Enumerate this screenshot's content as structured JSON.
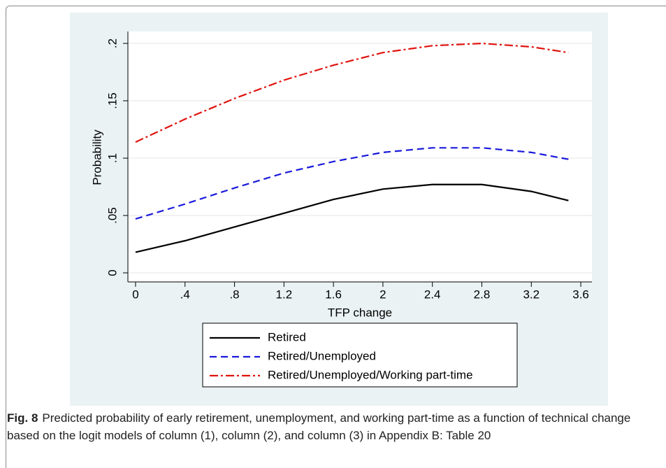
{
  "chart_data": {
    "type": "line",
    "x_label": "TFP change",
    "y_label": "Probability",
    "x": [
      0,
      0.4,
      0.8,
      1.2,
      1.6,
      2,
      2.4,
      2.8,
      3.2,
      3.5
    ],
    "series": [
      {
        "name": "Retired",
        "color": "#000000",
        "dash": "solid",
        "values": [
          0.018,
          0.028,
          0.04,
          0.052,
          0.064,
          0.073,
          0.077,
          0.077,
          0.071,
          0.063
        ]
      },
      {
        "name": "Retired/Unemployed",
        "color": "#1a1adb",
        "dash": "dashed",
        "values": [
          0.047,
          0.06,
          0.074,
          0.087,
          0.097,
          0.105,
          0.109,
          0.109,
          0.105,
          0.099
        ]
      },
      {
        "name": "Retired/Unemployed/Working part-time",
        "color": "#e0140f",
        "dash": "dashdot",
        "values": [
          0.114,
          0.134,
          0.152,
          0.168,
          0.181,
          0.192,
          0.198,
          0.2,
          0.197,
          0.192
        ]
      }
    ],
    "xlim": [
      -0.062,
      3.69
    ],
    "ylim": [
      -0.0079,
      0.2104
    ],
    "xticks": [
      0,
      {
        "value": 0.4,
        "label": ".4"
      },
      {
        "value": 0.8,
        "label": ".8"
      },
      1.2,
      1.6,
      2,
      2.4,
      2.8,
      3.2,
      3.6
    ],
    "yticks": [
      0,
      {
        "value": 0.05,
        "label": ".05"
      },
      {
        "value": 0.1,
        "label": ".1"
      },
      {
        "value": 0.15,
        "label": ".15"
      },
      {
        "value": 0.2,
        "label": ".2"
      }
    ],
    "grid": true,
    "legend": "bottom"
  },
  "caption": {
    "label": "Fig. 8",
    "text": "Predicted probability of early retirement, unemployment, and working part-time as a function of technical change based on the logit models of column (1), column (2), and column (3) in Appendix B: Table 20"
  }
}
